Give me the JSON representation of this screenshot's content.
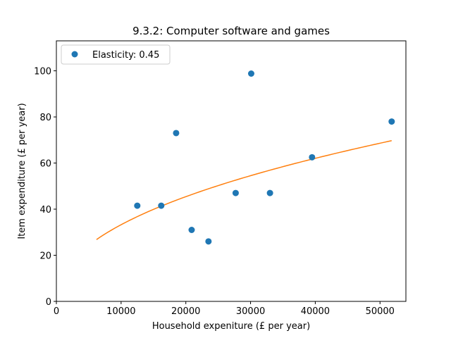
{
  "chart_data": {
    "type": "scatter",
    "title": "9.3.2: Computer software and games",
    "xlabel": "Household expeniture (£ per year)",
    "ylabel": "Item expenditure (£ per year)",
    "xlim": [
      0,
      54000
    ],
    "ylim": [
      0,
      113
    ],
    "x_ticks": [
      0,
      10000,
      20000,
      30000,
      40000,
      50000
    ],
    "y_ticks": [
      0,
      20,
      40,
      60,
      80,
      100
    ],
    "grid": false,
    "legend": {
      "placement": "top-left",
      "entries": [
        "Elasticity: 0.45"
      ]
    },
    "colors": {
      "points": "#1f77b4",
      "fit": "#ff7f0e"
    },
    "series": [
      {
        "name": "Elasticity: 0.45",
        "kind": "scatter",
        "points": [
          {
            "x": 12500,
            "y": 41.5
          },
          {
            "x": 16200,
            "y": 41.5
          },
          {
            "x": 18500,
            "y": 73
          },
          {
            "x": 20900,
            "y": 31
          },
          {
            "x": 23500,
            "y": 26
          },
          {
            "x": 27700,
            "y": 47
          },
          {
            "x": 30100,
            "y": 98.8
          },
          {
            "x": 33000,
            "y": 47
          },
          {
            "x": 39500,
            "y": 62.5
          },
          {
            "x": 51800,
            "y": 78
          }
        ]
      },
      {
        "kind": "fit",
        "elasticity": 0.45,
        "x_range": [
          6200,
          51800
        ],
        "anchor": {
          "x": 51800,
          "y": 69.7
        }
      }
    ]
  }
}
